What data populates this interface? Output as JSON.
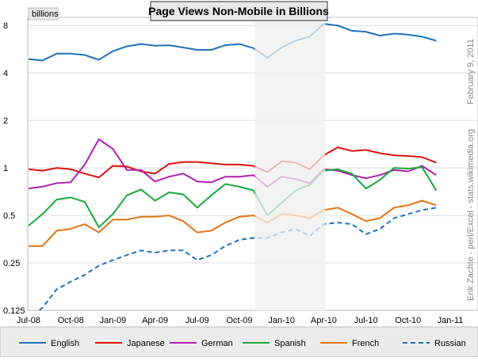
{
  "chart_data": {
    "type": "line",
    "title": "Page Views Non-Mobile in Billions",
    "ylabel": "billions",
    "y_scale": "log2",
    "ylim": [
      0.125,
      9
    ],
    "y_ticks": [
      {
        "value": 0.125,
        "label": "0.125"
      },
      {
        "value": 0.25,
        "label": "0.25"
      },
      {
        "value": 0.5,
        "label": "0.5"
      },
      {
        "value": 1,
        "label": "1"
      },
      {
        "value": 2,
        "label": "2"
      },
      {
        "value": 4,
        "label": "4"
      },
      {
        "value": 8,
        "label": "8"
      }
    ],
    "x_ticks": [
      "Jul-08",
      "Oct-08",
      "Jan-09",
      "Apr-09",
      "Jul-09",
      "Oct-09",
      "Jan-10",
      "Apr-10",
      "Jul-10",
      "Oct-10",
      "Jan-11"
    ],
    "x": [
      "2008-07",
      "2008-08",
      "2008-09",
      "2008-10",
      "2008-11",
      "2008-12",
      "2009-01",
      "2009-02",
      "2009-03",
      "2009-04",
      "2009-05",
      "2009-06",
      "2009-07",
      "2009-08",
      "2009-09",
      "2009-10",
      "2009-11",
      "2009-12",
      "2010-01",
      "2010-02",
      "2010-03",
      "2010-04",
      "2010-05",
      "2010-06",
      "2010-07",
      "2010-08",
      "2010-09",
      "2010-10",
      "2010-11",
      "2010-12"
    ],
    "shaded_period": [
      "2009-11",
      "2010-04"
    ],
    "series": [
      {
        "name": "English",
        "color": "#1f72b8",
        "dashed": false,
        "values": [
          4.9,
          4.8,
          5.3,
          5.3,
          5.2,
          4.85,
          5.5,
          5.9,
          6.1,
          5.95,
          6.0,
          5.8,
          5.6,
          5.6,
          6.0,
          6.1,
          5.75,
          5.0,
          5.8,
          6.4,
          6.8,
          8.2,
          8.0,
          7.4,
          7.3,
          6.9,
          7.1,
          7.0,
          6.8,
          6.4
        ]
      },
      {
        "name": "Japanese",
        "color": "#e01010",
        "dashed": false,
        "values": [
          0.98,
          0.96,
          1.0,
          0.98,
          0.92,
          0.87,
          1.03,
          1.02,
          0.95,
          0.92,
          1.06,
          1.09,
          1.09,
          1.07,
          1.05,
          1.05,
          1.03,
          0.94,
          1.1,
          1.08,
          0.98,
          1.2,
          1.35,
          1.28,
          1.3,
          1.24,
          1.2,
          1.19,
          1.17,
          1.08
        ]
      },
      {
        "name": "German",
        "color": "#b020b0",
        "dashed": false,
        "values": [
          0.74,
          0.76,
          0.8,
          0.81,
          1.05,
          1.52,
          1.32,
          0.97,
          0.97,
          0.82,
          0.88,
          0.92,
          0.82,
          0.81,
          0.88,
          0.88,
          0.9,
          0.76,
          0.88,
          0.85,
          0.8,
          0.98,
          0.96,
          0.9,
          0.86,
          0.9,
          0.97,
          0.95,
          1.03,
          0.9
        ]
      },
      {
        "name": "Spanish",
        "color": "#18a83c",
        "dashed": false,
        "values": [
          0.43,
          0.51,
          0.63,
          0.65,
          0.61,
          0.42,
          0.51,
          0.67,
          0.73,
          0.62,
          0.7,
          0.68,
          0.56,
          0.67,
          0.79,
          0.76,
          0.72,
          0.5,
          0.6,
          0.72,
          0.78,
          0.96,
          0.98,
          0.92,
          0.74,
          0.84,
          1.0,
          0.99,
          1.01,
          0.72
        ]
      },
      {
        "name": "French",
        "color": "#e07418",
        "dashed": false,
        "values": [
          0.32,
          0.32,
          0.4,
          0.41,
          0.44,
          0.39,
          0.47,
          0.47,
          0.49,
          0.49,
          0.5,
          0.46,
          0.39,
          0.4,
          0.45,
          0.49,
          0.5,
          0.45,
          0.51,
          0.5,
          0.48,
          0.54,
          0.56,
          0.51,
          0.46,
          0.48,
          0.56,
          0.58,
          0.62,
          0.58
        ]
      },
      {
        "name": "Russian",
        "color": "#1f72b8",
        "dashed": true,
        "values": [
          0.11,
          0.13,
          0.17,
          0.19,
          0.21,
          0.24,
          0.26,
          0.28,
          0.3,
          0.29,
          0.3,
          0.3,
          0.26,
          0.28,
          0.32,
          0.35,
          0.36,
          0.36,
          0.39,
          0.41,
          0.37,
          0.44,
          0.45,
          0.44,
          0.38,
          0.41,
          0.48,
          0.51,
          0.54,
          0.56
        ]
      }
    ],
    "legend_position": "bottom",
    "credit": "Erik Zachte - perl/Excel - stats.wikimedia.org",
    "date": "February 9, 2011"
  }
}
